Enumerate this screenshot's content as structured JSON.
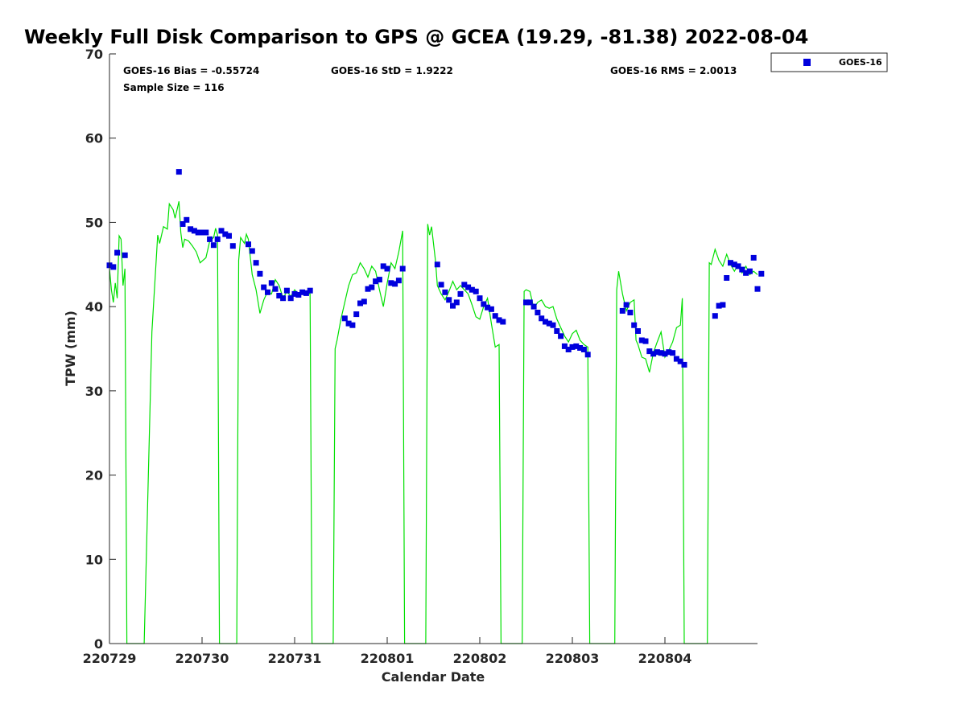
{
  "colors": {
    "gps_line": "#00e000",
    "goes_marker": "#0000dd",
    "axis": "#262626"
  },
  "chart_data": {
    "type": "scatter",
    "title": "Weekly Full Disk Comparison to GPS @ GCEA (19.29, -81.38) 2022-08-04",
    "xlabel": "Calendar Date",
    "ylabel": "TPW (mm)",
    "xlim": [
      "2022-07-29 00:00",
      "2022-08-05 00:00"
    ],
    "ylim": [
      0,
      70
    ],
    "y_ticks": [
      0,
      10,
      20,
      30,
      40,
      50,
      60,
      70
    ],
    "x_ticks": [
      {
        "date": "2022-07-29",
        "label": "220729"
      },
      {
        "date": "2022-07-30",
        "label": "220730"
      },
      {
        "date": "2022-07-31",
        "label": "220731"
      },
      {
        "date": "2022-08-01",
        "label": "220801"
      },
      {
        "date": "2022-08-02",
        "label": "220802"
      },
      {
        "date": "2022-08-03",
        "label": "220803"
      },
      {
        "date": "2022-08-04",
        "label": "220804"
      }
    ],
    "grid": false,
    "legend": {
      "placement": "top-right",
      "entries": [
        "GOES-16"
      ]
    },
    "stats": {
      "bias": "GOES-16 Bias = -0.55724",
      "std": "GOES-16 StD = 1.9222",
      "rms": "GOES-16 RMS = 2.0013",
      "sample": "Sample Size = 116"
    },
    "gps_line": [
      [
        "2022-07-29 00:00",
        44.5
      ],
      [
        "2022-07-29 00:30",
        42.0
      ],
      [
        "2022-07-29 01:00",
        40.5
      ],
      [
        "2022-07-29 01:30",
        42.8
      ],
      [
        "2022-07-29 02:00",
        41.0
      ],
      [
        "2022-07-29 02:30",
        48.4
      ],
      [
        "2022-07-29 03:00",
        48.0
      ],
      [
        "2022-07-29 03:30",
        42.5
      ],
      [
        "2022-07-29 04:00",
        44.5
      ],
      [
        "2022-07-29 04:30",
        0
      ],
      [
        "2022-07-29 09:00",
        0
      ],
      [
        "2022-07-29 11:00",
        37.0
      ],
      [
        "2022-07-29 12:30",
        48.5
      ],
      [
        "2022-07-29 13:00",
        47.5
      ],
      [
        "2022-07-29 14:00",
        49.5
      ],
      [
        "2022-07-29 15:00",
        49.2
      ],
      [
        "2022-07-29 15:30",
        52.2
      ],
      [
        "2022-07-29 16:30",
        51.5
      ],
      [
        "2022-07-29 17:00",
        50.5
      ],
      [
        "2022-07-29 18:00",
        52.5
      ],
      [
        "2022-07-29 18:30",
        48.8
      ],
      [
        "2022-07-29 19:00",
        47.0
      ],
      [
        "2022-07-29 19:30",
        48.0
      ],
      [
        "2022-07-29 20:30",
        47.8
      ],
      [
        "2022-07-29 21:30",
        47.2
      ],
      [
        "2022-07-29 22:30",
        46.5
      ],
      [
        "2022-07-29 23:30",
        45.2
      ],
      [
        "2022-07-30 00:30",
        45.6
      ],
      [
        "2022-07-30 01:00",
        45.8
      ],
      [
        "2022-07-30 02:00",
        47.8
      ],
      [
        "2022-07-30 03:00",
        48.2
      ],
      [
        "2022-07-30 03:30",
        49.3
      ],
      [
        "2022-07-30 04:00",
        48.5
      ],
      [
        "2022-07-30 04:30",
        0
      ],
      [
        "2022-07-30 09:00",
        0
      ],
      [
        "2022-07-30 09:30",
        45.5
      ],
      [
        "2022-07-30 10:00",
        48.2
      ],
      [
        "2022-07-30 11:00",
        47.5
      ],
      [
        "2022-07-30 11:30",
        48.6
      ],
      [
        "2022-07-30 12:00",
        48.0
      ],
      [
        "2022-07-30 13:00",
        43.8
      ],
      [
        "2022-07-30 14:00",
        42.0
      ],
      [
        "2022-07-30 15:00",
        39.2
      ],
      [
        "2022-07-30 16:00",
        40.8
      ],
      [
        "2022-07-30 17:00",
        41.8
      ],
      [
        "2022-07-30 18:00",
        41.5
      ],
      [
        "2022-07-30 19:00",
        43.2
      ],
      [
        "2022-07-30 20:00",
        42.5
      ],
      [
        "2022-07-30 21:00",
        41.0
      ],
      [
        "2022-07-30 22:00",
        41.8
      ],
      [
        "2022-07-30 23:00",
        41.2
      ],
      [
        "2022-07-31 00:00",
        42.0
      ],
      [
        "2022-07-31 01:00",
        41.5
      ],
      [
        "2022-07-31 02:00",
        41.8
      ],
      [
        "2022-07-31 03:00",
        41.6
      ],
      [
        "2022-07-31 04:00",
        41.5
      ],
      [
        "2022-07-31 04:30",
        0
      ],
      [
        "2022-07-31 10:00",
        0
      ],
      [
        "2022-07-31 10:30",
        35.0
      ],
      [
        "2022-07-31 11:00",
        36.0
      ],
      [
        "2022-07-31 12:00",
        38.5
      ],
      [
        "2022-07-31 13:00",
        40.5
      ],
      [
        "2022-07-31 14:00",
        42.5
      ],
      [
        "2022-07-31 15:00",
        43.8
      ],
      [
        "2022-07-31 16:00",
        44.0
      ],
      [
        "2022-07-31 17:00",
        45.2
      ],
      [
        "2022-07-31 18:00",
        44.5
      ],
      [
        "2022-07-31 19:00",
        43.5
      ],
      [
        "2022-07-31 20:00",
        44.8
      ],
      [
        "2022-07-31 21:00",
        44.2
      ],
      [
        "2022-07-31 22:00",
        42.0
      ],
      [
        "2022-07-31 23:00",
        40.0
      ],
      [
        "2022-08-01 00:00",
        42.8
      ],
      [
        "2022-08-01 01:00",
        45.2
      ],
      [
        "2022-08-01 02:00",
        44.5
      ],
      [
        "2022-08-01 03:00",
        46.5
      ],
      [
        "2022-08-01 04:00",
        49.0
      ],
      [
        "2022-08-01 04:30",
        0
      ],
      [
        "2022-08-01 10:00",
        0
      ],
      [
        "2022-08-01 10:30",
        49.8
      ],
      [
        "2022-08-01 11:00",
        48.5
      ],
      [
        "2022-08-01 11:30",
        49.5
      ],
      [
        "2022-08-01 12:30",
        45.5
      ],
      [
        "2022-08-01 13:00",
        42.5
      ],
      [
        "2022-08-01 14:00",
        41.5
      ],
      [
        "2022-08-01 15:00",
        40.8
      ],
      [
        "2022-08-01 16:00",
        41.8
      ],
      [
        "2022-08-01 17:00",
        43.0
      ],
      [
        "2022-08-01 18:00",
        42.0
      ],
      [
        "2022-08-01 19:00",
        42.5
      ],
      [
        "2022-08-01 20:00",
        42.0
      ],
      [
        "2022-08-01 21:00",
        41.5
      ],
      [
        "2022-08-01 22:00",
        40.2
      ],
      [
        "2022-08-01 23:00",
        38.8
      ],
      [
        "2022-08-02 00:00",
        38.5
      ],
      [
        "2022-08-02 01:00",
        40.0
      ],
      [
        "2022-08-02 02:00",
        41.0
      ],
      [
        "2022-08-02 03:00",
        38.0
      ],
      [
        "2022-08-02 04:00",
        35.2
      ],
      [
        "2022-08-02 05:00",
        35.5
      ],
      [
        "2022-08-02 05:30",
        0
      ],
      [
        "2022-08-02 11:00",
        0
      ],
      [
        "2022-08-02 11:30",
        41.8
      ],
      [
        "2022-08-02 12:00",
        42.0
      ],
      [
        "2022-08-02 13:00",
        41.8
      ],
      [
        "2022-08-02 14:00",
        39.8
      ],
      [
        "2022-08-02 15:00",
        40.5
      ],
      [
        "2022-08-02 16:00",
        40.8
      ],
      [
        "2022-08-02 17:00",
        40.0
      ],
      [
        "2022-08-02 18:00",
        39.8
      ],
      [
        "2022-08-02 19:00",
        40.0
      ],
      [
        "2022-08-02 20:00",
        38.5
      ],
      [
        "2022-08-02 21:00",
        37.5
      ],
      [
        "2022-08-02 22:00",
        36.5
      ],
      [
        "2022-08-02 23:00",
        35.8
      ],
      [
        "2022-08-03 00:00",
        36.8
      ],
      [
        "2022-08-03 01:00",
        37.2
      ],
      [
        "2022-08-03 02:00",
        36.0
      ],
      [
        "2022-08-03 03:00",
        35.5
      ],
      [
        "2022-08-03 04:00",
        35.2
      ],
      [
        "2022-08-03 04:30",
        0
      ],
      [
        "2022-08-03 11:00",
        0
      ],
      [
        "2022-08-03 11:30",
        42.0
      ],
      [
        "2022-08-03 12:00",
        44.2
      ],
      [
        "2022-08-03 13:00",
        41.5
      ],
      [
        "2022-08-03 14:00",
        39.5
      ],
      [
        "2022-08-03 15:00",
        40.5
      ],
      [
        "2022-08-03 16:00",
        40.8
      ],
      [
        "2022-08-03 16:30",
        36.0
      ],
      [
        "2022-08-03 17:00",
        35.5
      ],
      [
        "2022-08-03 18:00",
        34.0
      ],
      [
        "2022-08-03 19:00",
        33.8
      ],
      [
        "2022-08-03 20:00",
        32.2
      ],
      [
        "2022-08-03 21:00",
        34.5
      ],
      [
        "2022-08-03 22:00",
        35.8
      ],
      [
        "2022-08-03 23:00",
        37.0
      ],
      [
        "2022-08-04 00:00",
        34.0
      ],
      [
        "2022-08-04 01:00",
        34.8
      ],
      [
        "2022-08-04 02:00",
        35.8
      ],
      [
        "2022-08-04 03:00",
        37.5
      ],
      [
        "2022-08-04 04:00",
        37.8
      ],
      [
        "2022-08-04 04:30",
        41.0
      ],
      [
        "2022-08-04 05:00",
        0
      ],
      [
        "2022-08-04 11:00",
        0
      ],
      [
        "2022-08-04 11:30",
        45.2
      ],
      [
        "2022-08-04 12:00",
        45.0
      ],
      [
        "2022-08-04 13:00",
        46.8
      ],
      [
        "2022-08-04 14:00",
        45.5
      ],
      [
        "2022-08-04 15:00",
        44.8
      ],
      [
        "2022-08-04 16:00",
        46.2
      ],
      [
        "2022-08-04 17:00",
        45.0
      ],
      [
        "2022-08-04 18:00",
        44.2
      ],
      [
        "2022-08-04 19:00",
        45.0
      ],
      [
        "2022-08-04 20:00",
        44.0
      ],
      [
        "2022-08-04 21:00",
        44.8
      ],
      [
        "2022-08-04 22:00",
        43.8
      ],
      [
        "2022-08-04 23:00",
        44.2
      ],
      [
        "2022-08-05 00:00",
        43.8
      ]
    ],
    "series": [
      {
        "name": "GOES-16",
        "points": [
          [
            "2022-07-29 00:00",
            44.9
          ],
          [
            "2022-07-29 01:00",
            44.7
          ],
          [
            "2022-07-29 02:00",
            46.4
          ],
          [
            "2022-07-29 04:00",
            46.1
          ],
          [
            "2022-07-29 18:00",
            56.0
          ],
          [
            "2022-07-29 19:00",
            49.8
          ],
          [
            "2022-07-29 20:00",
            50.3
          ],
          [
            "2022-07-29 21:00",
            49.2
          ],
          [
            "2022-07-29 22:00",
            49.0
          ],
          [
            "2022-07-29 23:00",
            48.8
          ],
          [
            "2022-07-30 00:00",
            48.8
          ],
          [
            "2022-07-30 01:00",
            48.8
          ],
          [
            "2022-07-30 02:00",
            48.0
          ],
          [
            "2022-07-30 03:00",
            47.3
          ],
          [
            "2022-07-30 04:00",
            48.0
          ],
          [
            "2022-07-30 05:00",
            49.0
          ],
          [
            "2022-07-30 06:00",
            48.6
          ],
          [
            "2022-07-30 07:00",
            48.4
          ],
          [
            "2022-07-30 08:00",
            47.2
          ],
          [
            "2022-07-30 12:00",
            47.4
          ],
          [
            "2022-07-30 13:00",
            46.6
          ],
          [
            "2022-07-30 14:00",
            45.2
          ],
          [
            "2022-07-30 15:00",
            43.9
          ],
          [
            "2022-07-30 16:00",
            42.3
          ],
          [
            "2022-07-30 17:00",
            41.7
          ],
          [
            "2022-07-30 18:00",
            42.8
          ],
          [
            "2022-07-30 19:00",
            42.1
          ],
          [
            "2022-07-30 20:00",
            41.3
          ],
          [
            "2022-07-30 21:00",
            41.0
          ],
          [
            "2022-07-30 22:00",
            41.9
          ],
          [
            "2022-07-30 23:00",
            41.0
          ],
          [
            "2022-07-31 00:00",
            41.5
          ],
          [
            "2022-07-31 01:00",
            41.4
          ],
          [
            "2022-07-31 02:00",
            41.7
          ],
          [
            "2022-07-31 03:00",
            41.6
          ],
          [
            "2022-07-31 04:00",
            41.9
          ],
          [
            "2022-07-31 13:00",
            38.6
          ],
          [
            "2022-07-31 14:00",
            38.0
          ],
          [
            "2022-07-31 15:00",
            37.8
          ],
          [
            "2022-07-31 16:00",
            39.1
          ],
          [
            "2022-07-31 17:00",
            40.4
          ],
          [
            "2022-07-31 18:00",
            40.6
          ],
          [
            "2022-07-31 19:00",
            42.1
          ],
          [
            "2022-07-31 20:00",
            42.3
          ],
          [
            "2022-07-31 21:00",
            43.0
          ],
          [
            "2022-07-31 22:00",
            43.2
          ],
          [
            "2022-07-31 23:00",
            44.8
          ],
          [
            "2022-08-01 00:00",
            44.5
          ],
          [
            "2022-08-01 01:00",
            42.8
          ],
          [
            "2022-08-01 02:00",
            42.7
          ],
          [
            "2022-08-01 03:00",
            43.1
          ],
          [
            "2022-08-01 04:00",
            44.5
          ],
          [
            "2022-08-01 13:00",
            45.0
          ],
          [
            "2022-08-01 14:00",
            42.6
          ],
          [
            "2022-08-01 15:00",
            41.7
          ],
          [
            "2022-08-01 16:00",
            40.8
          ],
          [
            "2022-08-01 17:00",
            40.1
          ],
          [
            "2022-08-01 18:00",
            40.5
          ],
          [
            "2022-08-01 19:00",
            41.5
          ],
          [
            "2022-08-01 20:00",
            42.6
          ],
          [
            "2022-08-01 21:00",
            42.3
          ],
          [
            "2022-08-01 22:00",
            42.0
          ],
          [
            "2022-08-01 23:00",
            41.8
          ],
          [
            "2022-08-02 00:00",
            41.0
          ],
          [
            "2022-08-02 01:00",
            40.3
          ],
          [
            "2022-08-02 02:00",
            39.9
          ],
          [
            "2022-08-02 03:00",
            39.7
          ],
          [
            "2022-08-02 04:00",
            38.9
          ],
          [
            "2022-08-02 05:00",
            38.4
          ],
          [
            "2022-08-02 06:00",
            38.2
          ],
          [
            "2022-08-02 12:00",
            40.5
          ],
          [
            "2022-08-02 13:00",
            40.5
          ],
          [
            "2022-08-02 14:00",
            40.0
          ],
          [
            "2022-08-02 15:00",
            39.3
          ],
          [
            "2022-08-02 16:00",
            38.6
          ],
          [
            "2022-08-02 17:00",
            38.2
          ],
          [
            "2022-08-02 18:00",
            38.0
          ],
          [
            "2022-08-02 19:00",
            37.8
          ],
          [
            "2022-08-02 20:00",
            37.1
          ],
          [
            "2022-08-02 21:00",
            36.5
          ],
          [
            "2022-08-02 22:00",
            35.3
          ],
          [
            "2022-08-02 23:00",
            34.9
          ],
          [
            "2022-08-03 00:00",
            35.2
          ],
          [
            "2022-08-03 01:00",
            35.3
          ],
          [
            "2022-08-03 02:00",
            35.1
          ],
          [
            "2022-08-03 03:00",
            34.9
          ],
          [
            "2022-08-03 04:00",
            34.3
          ],
          [
            "2022-08-03 13:00",
            39.5
          ],
          [
            "2022-08-03 14:00",
            40.2
          ],
          [
            "2022-08-03 15:00",
            39.3
          ],
          [
            "2022-08-03 16:00",
            37.8
          ],
          [
            "2022-08-03 17:00",
            37.1
          ],
          [
            "2022-08-03 18:00",
            36.0
          ],
          [
            "2022-08-03 19:00",
            35.9
          ],
          [
            "2022-08-03 20:00",
            34.7
          ],
          [
            "2022-08-03 21:00",
            34.4
          ],
          [
            "2022-08-03 22:00",
            34.6
          ],
          [
            "2022-08-03 23:00",
            34.5
          ],
          [
            "2022-08-04 00:00",
            34.4
          ],
          [
            "2022-08-04 01:00",
            34.6
          ],
          [
            "2022-08-04 02:00",
            34.5
          ],
          [
            "2022-08-04 03:00",
            33.8
          ],
          [
            "2022-08-04 04:00",
            33.5
          ],
          [
            "2022-08-04 05:00",
            33.1
          ],
          [
            "2022-08-04 13:00",
            38.9
          ],
          [
            "2022-08-04 14:00",
            40.1
          ],
          [
            "2022-08-04 15:00",
            40.2
          ],
          [
            "2022-08-04 16:00",
            43.4
          ],
          [
            "2022-08-04 17:00",
            45.2
          ],
          [
            "2022-08-04 18:00",
            45.0
          ],
          [
            "2022-08-04 19:00",
            44.8
          ],
          [
            "2022-08-04 20:00",
            44.4
          ],
          [
            "2022-08-04 21:00",
            44.0
          ],
          [
            "2022-08-04 22:00",
            44.2
          ],
          [
            "2022-08-04 23:00",
            45.8
          ],
          [
            "2022-08-05 00:00",
            42.1
          ],
          [
            "2022-08-05 01:00",
            43.9
          ]
        ]
      }
    ]
  }
}
